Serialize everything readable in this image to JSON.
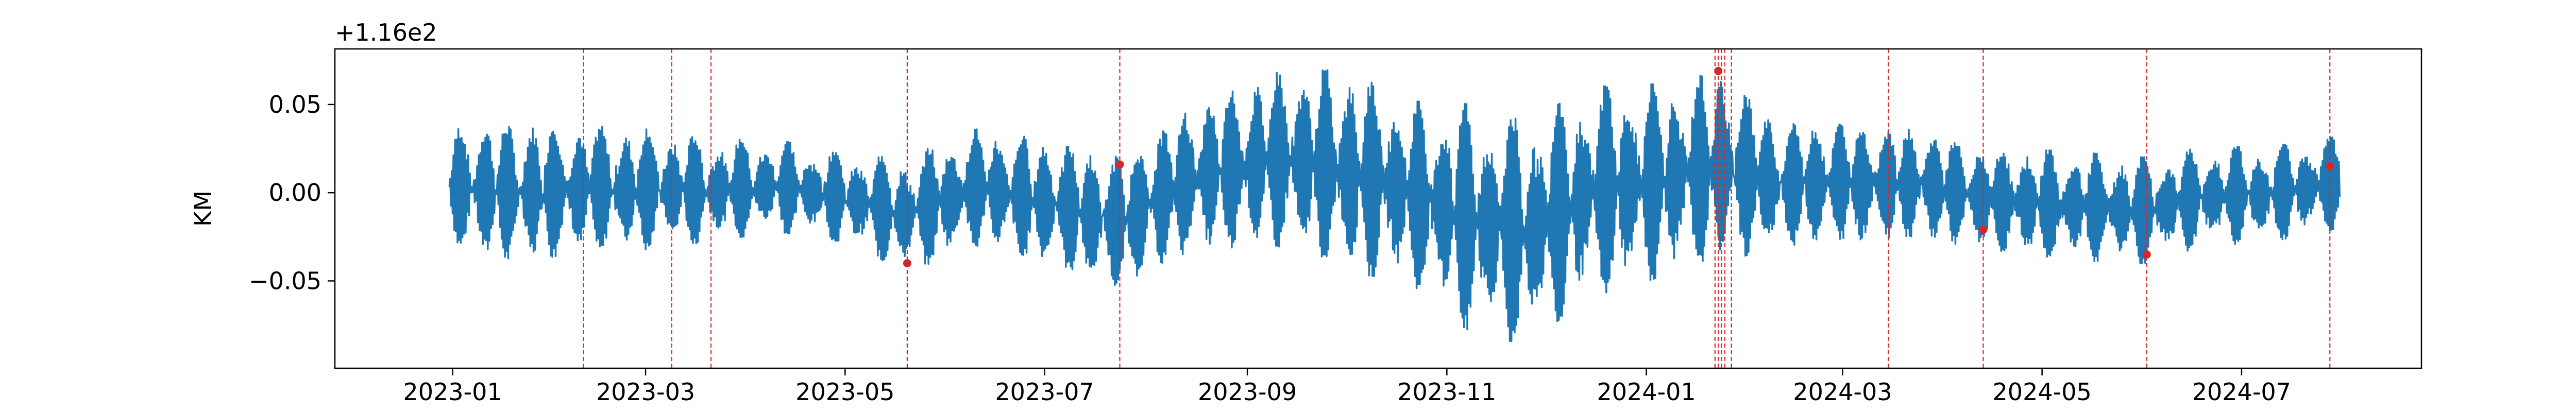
{
  "chart_data": {
    "type": "line",
    "title": "",
    "xlabel": "",
    "ylabel": "KM",
    "y_offset_label": "+1.16e2",
    "y_offset": 116,
    "ylim": [
      -0.0995,
      0.0815
    ],
    "xlim": [
      "2022-11-26",
      "2024-08-25"
    ],
    "x_ticks": [
      "2023-01",
      "2023-03",
      "2023-05",
      "2023-07",
      "2023-09",
      "2023-11",
      "2024-01",
      "2024-03",
      "2024-05",
      "2024-07"
    ],
    "x_tick_dates": [
      "2023-01-01",
      "2023-03-01",
      "2023-05-01",
      "2023-07-01",
      "2023-09-01",
      "2023-11-01",
      "2024-01-01",
      "2024-03-01",
      "2024-05-01",
      "2024-07-01"
    ],
    "y_ticks": [
      "0.05",
      "0.00",
      "−0.05"
    ],
    "y_tick_values": [
      0.05,
      0.0,
      -0.05
    ],
    "grid": false,
    "series": [
      {
        "color": "#1f77b4",
        "x_start": "2022-12-31",
        "x_end": "2024-07-31",
        "envelope": [
          {
            "x": "2022-12-31",
            "low": -0.031,
            "high": 0.038
          },
          {
            "x": "2023-01-20",
            "low": -0.04,
            "high": 0.04
          },
          {
            "x": "2023-02-10",
            "low": -0.034,
            "high": 0.038
          },
          {
            "x": "2023-03-01",
            "low": -0.032,
            "high": 0.036
          },
          {
            "x": "2023-03-20",
            "low": -0.028,
            "high": 0.03
          },
          {
            "x": "2023-04-10",
            "low": -0.022,
            "high": 0.03
          },
          {
            "x": "2023-05-01",
            "low": -0.028,
            "high": 0.022
          },
          {
            "x": "2023-05-20",
            "low": -0.045,
            "high": 0.02
          },
          {
            "x": "2023-06-10",
            "low": -0.03,
            "high": 0.036
          },
          {
            "x": "2023-07-01",
            "low": -0.04,
            "high": 0.03
          },
          {
            "x": "2023-07-24",
            "low": -0.055,
            "high": 0.02
          },
          {
            "x": "2023-08-15",
            "low": -0.032,
            "high": 0.048
          },
          {
            "x": "2023-09-10",
            "low": -0.03,
            "high": 0.068
          },
          {
            "x": "2023-10-01",
            "low": -0.045,
            "high": 0.07
          },
          {
            "x": "2023-10-20",
            "low": -0.05,
            "high": 0.052
          },
          {
            "x": "2023-11-10",
            "low": -0.082,
            "high": 0.05
          },
          {
            "x": "2023-11-25",
            "low": -0.085,
            "high": 0.04
          },
          {
            "x": "2023-12-15",
            "low": -0.06,
            "high": 0.06
          },
          {
            "x": "2024-01-10",
            "low": -0.045,
            "high": 0.062
          },
          {
            "x": "2024-01-24",
            "low": -0.04,
            "high": 0.07
          },
          {
            "x": "2024-02-10",
            "low": -0.03,
            "high": 0.04
          },
          {
            "x": "2024-03-01",
            "low": -0.028,
            "high": 0.04
          },
          {
            "x": "2024-03-25",
            "low": -0.026,
            "high": 0.036
          },
          {
            "x": "2024-04-15",
            "low": -0.032,
            "high": 0.024
          },
          {
            "x": "2024-05-05",
            "low": -0.038,
            "high": 0.024
          },
          {
            "x": "2024-06-01",
            "low": -0.04,
            "high": 0.02
          },
          {
            "x": "2024-06-20",
            "low": -0.03,
            "high": 0.026
          },
          {
            "x": "2024-07-10",
            "low": -0.028,
            "high": 0.026
          },
          {
            "x": "2024-07-31",
            "low": -0.02,
            "high": 0.032
          }
        ]
      }
    ],
    "vertical_lines": {
      "color": "#d62728",
      "style": "dashed",
      "x": [
        "2023-02-10",
        "2023-03-09",
        "2023-03-21",
        "2023-05-20",
        "2023-07-24",
        "2024-01-22",
        "2024-01-23",
        "2024-01-24",
        "2024-01-25",
        "2024-01-27",
        "2024-03-15",
        "2024-04-13",
        "2024-06-02",
        "2024-07-28"
      ]
    },
    "markers": {
      "color": "#d62728",
      "points": [
        {
          "x": "2023-05-20",
          "y": -0.04
        },
        {
          "x": "2023-07-24",
          "y": 0.016
        },
        {
          "x": "2024-01-23",
          "y": 0.069
        },
        {
          "x": "2024-04-13",
          "y": -0.021
        },
        {
          "x": "2024-06-02",
          "y": -0.035
        },
        {
          "x": "2024-07-28",
          "y": 0.015
        }
      ]
    }
  }
}
